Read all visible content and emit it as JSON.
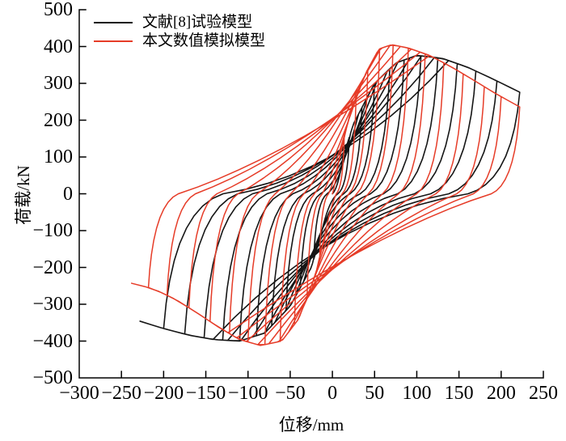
{
  "figure": {
    "background": "#ffffff",
    "axis_color": "#000000"
  },
  "chart_data": {
    "type": "line",
    "variant": "hysteresis-loops",
    "title": "",
    "xlabel": "位移/mm",
    "ylabel": "荷载/kN",
    "xlim": [
      -300,
      250
    ],
    "ylim": [
      -500,
      500
    ],
    "xticks": [
      -300,
      -250,
      -200,
      -150,
      -100,
      -50,
      0,
      50,
      100,
      150,
      200,
      250
    ],
    "yticks": [
      500,
      400,
      300,
      200,
      100,
      0,
      -100,
      -200,
      -300,
      -400,
      -500
    ],
    "grid": false,
    "legend_position": "top-left",
    "legend": [
      {
        "label": "文献[8]试验模型",
        "color": "#151515"
      },
      {
        "label": "本文数值模拟模型",
        "color": "#e63c28"
      }
    ],
    "series": [
      {
        "name": "文献[8]试验模型",
        "color": "#151515",
        "line_width": 1.6,
        "backbone_pos": [
          [
            0,
            0
          ],
          [
            10,
            80
          ],
          [
            25,
            190
          ],
          [
            50,
            300
          ],
          [
            75,
            355
          ],
          [
            100,
            376
          ],
          [
            130,
            368
          ],
          [
            160,
            344
          ],
          [
            190,
            312
          ],
          [
            222,
            276
          ]
        ],
        "backbone_neg": [
          [
            0,
            0
          ],
          [
            -10,
            -85
          ],
          [
            -25,
            -200
          ],
          [
            -50,
            -305
          ],
          [
            -80,
            -378
          ],
          [
            -110,
            -400
          ],
          [
            -140,
            -396
          ],
          [
            -170,
            -384
          ],
          [
            -200,
            -366
          ],
          [
            -228,
            -346
          ]
        ],
        "cycles": [
          [
            20,
            22
          ],
          [
            35,
            38
          ],
          [
            50,
            55
          ],
          [
            68,
            72
          ],
          [
            85,
            90
          ],
          [
            105,
            110
          ],
          [
            125,
            130
          ],
          [
            148,
            152
          ],
          [
            170,
            175
          ],
          [
            195,
            200
          ],
          [
            222,
            228
          ]
        ],
        "model": {
          "kbase": 12,
          "kmin": 4.5,
          "ksoft": 0.034,
          "rejoin": 0.62,
          "sag": 0.15,
          "shift": 0.55,
          "unload_bend": 0.15
        }
      },
      {
        "name": "本文数值模拟模型",
        "color": "#e63c28",
        "line_width": 1.5,
        "backbone_pos": [
          [
            0,
            0
          ],
          [
            8,
            95
          ],
          [
            20,
            210
          ],
          [
            40,
            330
          ],
          [
            55,
            393
          ],
          [
            70,
            405
          ],
          [
            90,
            396
          ],
          [
            115,
            376
          ],
          [
            140,
            346
          ],
          [
            165,
            312
          ],
          [
            195,
            270
          ],
          [
            222,
            236
          ]
        ],
        "backbone_neg": [
          [
            0,
            0
          ],
          [
            -8,
            -100
          ],
          [
            -20,
            -220
          ],
          [
            -40,
            -340
          ],
          [
            -60,
            -400
          ],
          [
            -85,
            -412
          ],
          [
            -110,
            -396
          ],
          [
            -135,
            -362
          ],
          [
            -160,
            -324
          ],
          [
            -185,
            -288
          ],
          [
            -212,
            -258
          ],
          [
            -238,
            -243
          ]
        ],
        "cycles": [
          [
            14,
            15
          ],
          [
            28,
            30
          ],
          [
            42,
            45
          ],
          [
            56,
            62
          ],
          [
            72,
            80
          ],
          [
            90,
            100
          ],
          [
            110,
            122
          ],
          [
            132,
            145
          ],
          [
            155,
            170
          ],
          [
            180,
            196
          ],
          [
            200,
            218
          ],
          [
            222,
            238
          ]
        ],
        "model": {
          "kbase": 17,
          "kmin": 7,
          "ksoft": 0.045,
          "rejoin": 0.52,
          "sag": 0.25,
          "shift": 0.42,
          "unload_bend": 0.15
        }
      }
    ]
  }
}
